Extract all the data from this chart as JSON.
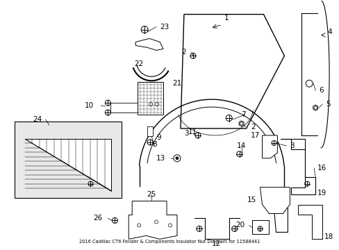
{
  "title": "2016 Cadillac CT6 Fender & Components Insulator Nut Diagram for 11588441",
  "background_color": "#ffffff",
  "line_color": "#000000",
  "text_color": "#000000",
  "fig_width": 4.89,
  "fig_height": 3.6,
  "dpi": 100
}
